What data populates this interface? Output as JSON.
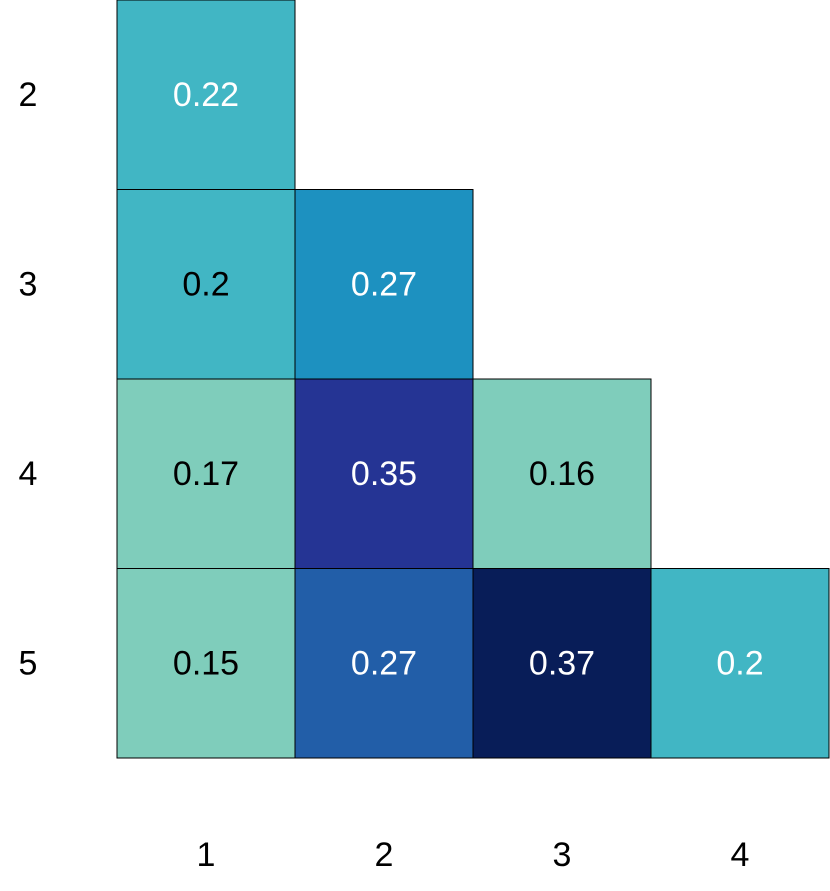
{
  "chart_data": {
    "type": "heatmap",
    "x_categories": [
      "1",
      "2",
      "3",
      "4"
    ],
    "y_categories": [
      "2",
      "3",
      "4",
      "5"
    ],
    "cells": [
      {
        "x": "1",
        "y": "2",
        "value": 0.22,
        "label": "0.22",
        "color": "#41b6c4",
        "text_color": "#ffffff"
      },
      {
        "x": "1",
        "y": "3",
        "value": 0.2,
        "label": "0.2",
        "color": "#41b6c4",
        "text_color": "#000000"
      },
      {
        "x": "2",
        "y": "3",
        "value": 0.27,
        "label": "0.27",
        "color": "#1d91c0",
        "text_color": "#ffffff"
      },
      {
        "x": "1",
        "y": "4",
        "value": 0.17,
        "label": "0.17",
        "color": "#7fcdbb",
        "text_color": "#000000"
      },
      {
        "x": "2",
        "y": "4",
        "value": 0.35,
        "label": "0.35",
        "color": "#253494",
        "text_color": "#ffffff"
      },
      {
        "x": "3",
        "y": "4",
        "value": 0.16,
        "label": "0.16",
        "color": "#7fcdbb",
        "text_color": "#000000"
      },
      {
        "x": "1",
        "y": "5",
        "value": 0.15,
        "label": "0.15",
        "color": "#7fcdbb",
        "text_color": "#000000"
      },
      {
        "x": "2",
        "y": "5",
        "value": 0.27,
        "label": "0.27",
        "color": "#225ea8",
        "text_color": "#ffffff"
      },
      {
        "x": "3",
        "y": "5",
        "value": 0.37,
        "label": "0.37",
        "color": "#081d58",
        "text_color": "#ffffff"
      },
      {
        "x": "4",
        "y": "5",
        "value": 0.2,
        "label": "0.2",
        "color": "#41b6c4",
        "text_color": "#ffffff"
      }
    ],
    "title": "",
    "xlabel": "",
    "ylabel": "",
    "legend": "none",
    "grid": false
  }
}
